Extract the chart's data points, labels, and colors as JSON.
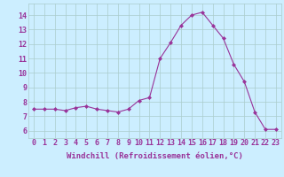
{
  "x": [
    0,
    1,
    2,
    3,
    4,
    5,
    6,
    7,
    8,
    9,
    10,
    11,
    12,
    13,
    14,
    15,
    16,
    17,
    18,
    19,
    20,
    21,
    22,
    23
  ],
  "y": [
    7.5,
    7.5,
    7.5,
    7.4,
    7.6,
    7.7,
    7.5,
    7.4,
    7.3,
    7.5,
    8.1,
    8.3,
    11.0,
    12.1,
    13.3,
    14.0,
    14.2,
    13.3,
    12.4,
    10.6,
    9.4,
    7.3,
    6.1,
    6.1
  ],
  "xlabel": "Windchill (Refroidissement éolien,°C)",
  "ylim": [
    5.5,
    14.8
  ],
  "yticks": [
    6,
    7,
    8,
    9,
    10,
    11,
    12,
    13,
    14
  ],
  "xticks": [
    0,
    1,
    2,
    3,
    4,
    5,
    6,
    7,
    8,
    9,
    10,
    11,
    12,
    13,
    14,
    15,
    16,
    17,
    18,
    19,
    20,
    21,
    22,
    23
  ],
  "line_color": "#993399",
  "marker_color": "#993399",
  "bg_color": "#cceeff",
  "grid_color": "#aacccc",
  "text_color": "#993399",
  "xlabel_fontsize": 6.5,
  "tick_fontsize": 6.0
}
